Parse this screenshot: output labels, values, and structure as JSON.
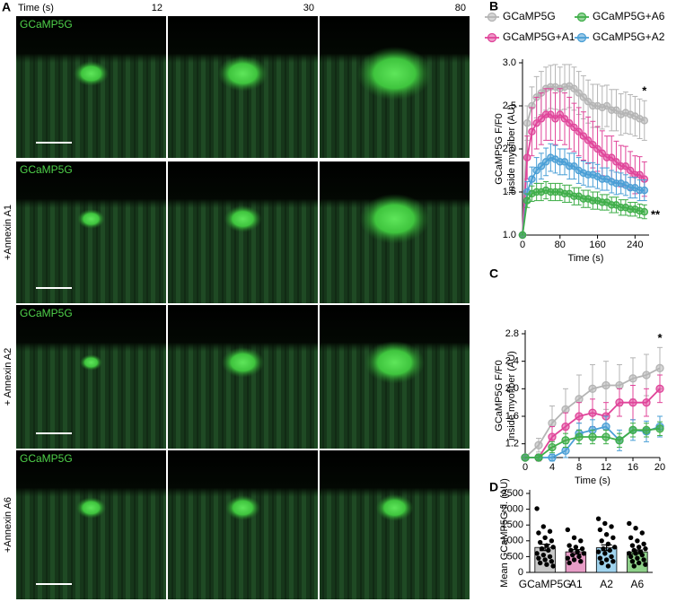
{
  "panel_a": {
    "label": "A",
    "time_label": "Time (s)",
    "times": [
      12,
      30,
      80
    ],
    "channel_label": "GCaMP5G",
    "row_labels": [
      "+Annexin A1",
      "+ Annexin A2",
      "+Annexin A6"
    ]
  },
  "chart_data": [
    {
      "type": "line",
      "label": "B",
      "ylabel": [
        "GCaMP5G F/F0",
        "inside myofiber (AU)"
      ],
      "xlabel": "Time (s)",
      "x": [
        0,
        10,
        20,
        30,
        40,
        50,
        60,
        70,
        80,
        90,
        100,
        110,
        120,
        130,
        140,
        150,
        160,
        170,
        180,
        190,
        200,
        210,
        220,
        230,
        240,
        250,
        260
      ],
      "xlim": [
        0,
        270
      ],
      "xticks": [
        0,
        80,
        160,
        240
      ],
      "ylim": [
        1,
        3
      ],
      "yticks": [
        {
          "value": 1,
          "label": "1.0"
        },
        {
          "value": 1.5,
          "label": "1.5"
        },
        {
          "value": 2,
          "label": "2.0"
        },
        {
          "value": 2.5,
          "label": "2.5"
        },
        {
          "value": 3,
          "label": "3.0"
        }
      ],
      "series": [
        {
          "name": "GCaMP5G",
          "color": "#b4b4b4",
          "values": [
            1.0,
            2.3,
            2.5,
            2.6,
            2.65,
            2.7,
            2.72,
            2.72,
            2.7,
            2.72,
            2.73,
            2.7,
            2.65,
            2.6,
            2.55,
            2.5,
            2.5,
            2.48,
            2.5,
            2.45,
            2.45,
            2.4,
            2.42,
            2.4,
            2.38,
            2.35,
            2.33
          ],
          "errors": [
            0,
            0.2,
            0.22,
            0.24,
            0.25,
            0.25,
            0.25,
            0.26,
            0.25,
            0.26,
            0.25,
            0.25,
            0.25,
            0.25,
            0.25,
            0.25,
            0.25,
            0.25,
            0.24,
            0.24,
            0.24,
            0.24,
            0.24,
            0.23,
            0.23,
            0.23,
            0.23
          ]
        },
        {
          "name": "GCaMP5G+A1",
          "color": "#e0459a",
          "values": [
            1.0,
            1.9,
            2.2,
            2.3,
            2.35,
            2.4,
            2.4,
            2.35,
            2.4,
            2.35,
            2.3,
            2.25,
            2.2,
            2.15,
            2.1,
            2.05,
            2.0,
            1.95,
            1.9,
            1.9,
            1.85,
            1.8,
            1.8,
            1.75,
            1.7,
            1.7,
            1.65
          ],
          "errors": [
            0,
            0.25,
            0.28,
            0.3,
            0.3,
            0.3,
            0.3,
            0.3,
            0.3,
            0.3,
            0.3,
            0.28,
            0.28,
            0.28,
            0.27,
            0.27,
            0.26,
            0.26,
            0.25,
            0.25,
            0.24,
            0.24,
            0.23,
            0.22,
            0.22,
            0.21,
            0.2
          ]
        },
        {
          "name": "GCaMP5G+A2",
          "color": "#4a9fd6",
          "values": [
            1.0,
            1.5,
            1.65,
            1.75,
            1.8,
            1.85,
            1.9,
            1.88,
            1.85,
            1.85,
            1.8,
            1.8,
            1.75,
            1.72,
            1.7,
            1.7,
            1.68,
            1.65,
            1.65,
            1.62,
            1.6,
            1.6,
            1.58,
            1.55,
            1.55,
            1.52,
            1.52
          ],
          "errors": [
            0,
            0.12,
            0.14,
            0.15,
            0.15,
            0.16,
            0.16,
            0.16,
            0.15,
            0.15,
            0.15,
            0.15,
            0.15,
            0.14,
            0.14,
            0.14,
            0.14,
            0.13,
            0.13,
            0.13,
            0.13,
            0.12,
            0.12,
            0.12,
            0.12,
            0.12,
            0.12
          ]
        },
        {
          "name": "GCaMP5G+A6",
          "color": "#3fae49",
          "values": [
            1.0,
            1.4,
            1.48,
            1.5,
            1.5,
            1.52,
            1.5,
            1.5,
            1.5,
            1.48,
            1.48,
            1.45,
            1.45,
            1.42,
            1.42,
            1.4,
            1.4,
            1.38,
            1.38,
            1.35,
            1.35,
            1.32,
            1.32,
            1.3,
            1.3,
            1.28,
            1.27
          ],
          "errors": [
            0,
            0.08,
            0.09,
            0.1,
            0.1,
            0.1,
            0.1,
            0.1,
            0.1,
            0.1,
            0.1,
            0.1,
            0.1,
            0.1,
            0.1,
            0.1,
            0.1,
            0.09,
            0.09,
            0.09,
            0.09,
            0.09,
            0.09,
            0.08,
            0.08,
            0.08,
            0.08
          ]
        }
      ],
      "annotations": [
        {
          "text": "*",
          "series": 0
        },
        {
          "text": "**",
          "series": 3
        }
      ]
    },
    {
      "type": "line",
      "label": "C",
      "ylabel": [
        "GCaMP5G F/F0",
        "inside myofiber (AU)"
      ],
      "xlabel": "Time (s)",
      "x": [
        0,
        2,
        4,
        6,
        8,
        10,
        12,
        14,
        16,
        18,
        20
      ],
      "xlim": [
        0,
        20
      ],
      "xticks": [
        0,
        4,
        8,
        12,
        16,
        20
      ],
      "ylim": [
        1,
        2.8
      ],
      "yticks": [
        1.2,
        1.6,
        {
          "value": 2,
          "label": "2.0"
        },
        2.4,
        2.8
      ],
      "series": [
        {
          "color": "#b4b4b4",
          "values": [
            1.0,
            1.18,
            1.5,
            1.7,
            1.85,
            2.0,
            2.05,
            2.05,
            2.15,
            2.2,
            2.3
          ],
          "errors": [
            0,
            0.1,
            0.25,
            0.3,
            0.35,
            0.35,
            0.35,
            0.3,
            0.3,
            0.3,
            0.3
          ]
        },
        {
          "color": "#e0459a",
          "values": [
            1.0,
            1.0,
            1.3,
            1.45,
            1.6,
            1.65,
            1.6,
            1.8,
            1.8,
            1.8,
            2.0
          ],
          "errors": [
            0,
            0.05,
            0.15,
            0.2,
            0.2,
            0.2,
            0.2,
            0.2,
            0.25,
            0.2,
            0.2
          ]
        },
        {
          "color": "#4a9fd6",
          "values": [
            1.0,
            1.0,
            1.0,
            1.1,
            1.35,
            1.4,
            1.45,
            1.25,
            1.4,
            1.38,
            1.45
          ],
          "errors": [
            0,
            0.03,
            0.05,
            0.1,
            0.15,
            0.15,
            0.15,
            0.15,
            0.15,
            0.15,
            0.15
          ]
        },
        {
          "color": "#3fae49",
          "values": [
            1.0,
            1.0,
            1.15,
            1.25,
            1.3,
            1.3,
            1.3,
            1.25,
            1.4,
            1.4,
            1.42
          ],
          "errors": [
            0,
            0.03,
            0.08,
            0.1,
            0.1,
            0.1,
            0.1,
            0.1,
            0.1,
            0.1,
            0.1
          ]
        }
      ],
      "annotations": [
        {
          "text": "*",
          "series": 0
        }
      ]
    },
    {
      "type": "bar",
      "label": "D",
      "ylabel": "Mean GCaMP5G fl. (AU)",
      "categories": [
        "GCaMP5G",
        "A1",
        "A2",
        "A6"
      ],
      "values": [
        790,
        650,
        780,
        650
      ],
      "errors": [
        100,
        70,
        90,
        60
      ],
      "colors": [
        "#c8c8c8",
        "#e79cc6",
        "#9fd3ee",
        "#8fd18a"
      ],
      "points": [
        [
          2020,
          1450,
          1300,
          1250,
          1100,
          1000,
          950,
          850,
          800,
          750,
          700,
          600,
          550,
          500,
          450,
          400,
          350,
          300,
          250,
          200
        ],
        [
          1350,
          1100,
          1000,
          850,
          800,
          750,
          700,
          650,
          600,
          550,
          500,
          450,
          400,
          350,
          300
        ],
        [
          1700,
          1550,
          1450,
          1350,
          1200,
          1100,
          1000,
          900,
          800,
          750,
          700,
          650,
          600,
          500,
          450,
          400,
          350,
          300,
          200
        ],
        [
          1550,
          1400,
          1250,
          1100,
          1000,
          900,
          850,
          800,
          750,
          700,
          650,
          600,
          600,
          550,
          500,
          450,
          400,
          350,
          300,
          250,
          200
        ]
      ],
      "ylim": [
        0,
        2500
      ],
      "yticks": [
        0,
        500,
        1000,
        1500,
        2000,
        2500
      ]
    }
  ]
}
